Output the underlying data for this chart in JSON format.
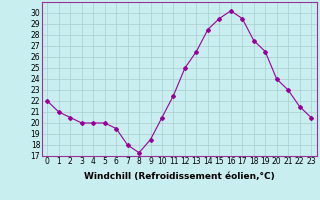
{
  "x": [
    0,
    1,
    2,
    3,
    4,
    5,
    6,
    7,
    8,
    9,
    10,
    11,
    12,
    13,
    14,
    15,
    16,
    17,
    18,
    19,
    20,
    21,
    22,
    23
  ],
  "y": [
    22.0,
    21.0,
    20.5,
    20.0,
    20.0,
    20.0,
    19.5,
    18.0,
    17.3,
    18.5,
    20.5,
    22.5,
    25.0,
    26.5,
    28.5,
    29.5,
    30.2,
    29.5,
    27.5,
    26.5,
    24.0,
    23.0,
    21.5,
    20.5
  ],
  "line_color": "#990099",
  "marker": "D",
  "marker_size": 2.0,
  "bg_color": "#c8eef0",
  "grid_color": "#aacccc",
  "xlabel": "Windchill (Refroidissement éolien,°C)",
  "xlabel_fontsize": 6.5,
  "ylim": [
    17,
    31
  ],
  "xlim": [
    -0.5,
    23.5
  ],
  "yticks": [
    17,
    18,
    19,
    20,
    21,
    22,
    23,
    24,
    25,
    26,
    27,
    28,
    29,
    30
  ],
  "xticks": [
    0,
    1,
    2,
    3,
    4,
    5,
    6,
    7,
    8,
    9,
    10,
    11,
    12,
    13,
    14,
    15,
    16,
    17,
    18,
    19,
    20,
    21,
    22,
    23
  ],
  "tick_fontsize": 5.5,
  "line_color_border": "#993399"
}
